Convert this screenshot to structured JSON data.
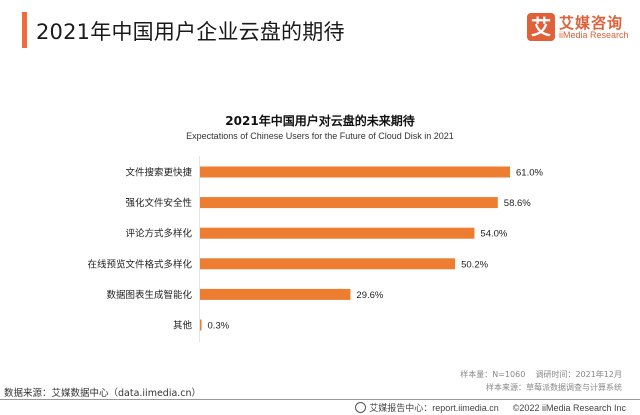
{
  "header": {
    "title": "2021年中国用户企业云盘的期待",
    "accent_color": "#f06a3a"
  },
  "logo": {
    "mark": "艾",
    "name_cn": "艾媒咨询",
    "name_en": "iiMedia Research",
    "color": "#e0603a"
  },
  "chart_data": {
    "type": "bar",
    "orientation": "horizontal",
    "title": "2021年中国用户对云盘的未来期待",
    "subtitle": "Expectations of Chinese Users for the Future of Cloud Disk in 2021",
    "categories": [
      "文件搜索更快捷",
      "强化文件安全性",
      "评论方式多样化",
      "在线预览文件格式多样化",
      "数据图表生成智能化",
      "其他"
    ],
    "values": [
      61.0,
      58.6,
      54.0,
      50.2,
      29.6,
      0.3
    ],
    "value_labels": [
      "61.0%",
      "58.6%",
      "54.0%",
      "50.2%",
      "29.6%",
      "0.3%"
    ],
    "unit": "%",
    "xlim": [
      0,
      61
    ],
    "bar_color": "#ed7d31",
    "grid": false,
    "legend": "none"
  },
  "notes": {
    "sample": "样本量：N=1060",
    "survey_time": "调研时间：2021年12月",
    "sample_source": "样本来源：草莓派数据调查与计算系统",
    "data_source": "数据来源：艾媒数据中心（data.iimedia.cn）"
  },
  "footer": {
    "report_center": "艾媒报告中心：report.iimedia.cn",
    "copyright": "©2022  iiMedia Research  Inc"
  }
}
